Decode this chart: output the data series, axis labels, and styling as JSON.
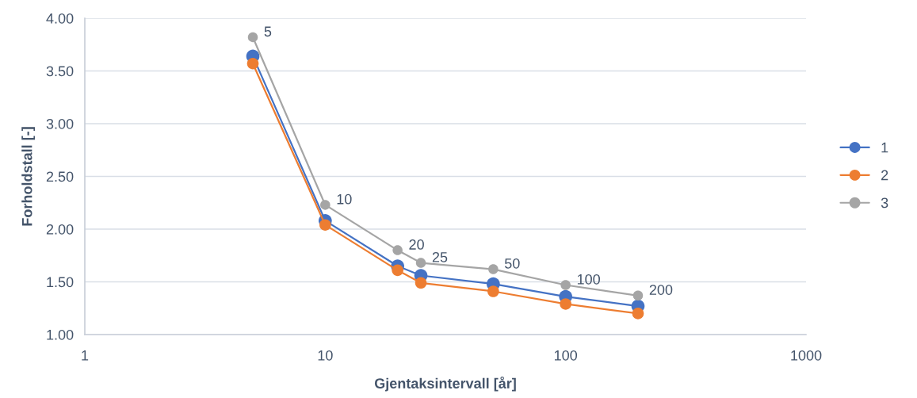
{
  "chart_data": {
    "type": "line",
    "xlabel": "Gjentaksintervall [år]",
    "ylabel": "Forholdstall [-]",
    "x": [
      5,
      10,
      20,
      25,
      50,
      100,
      200
    ],
    "series": [
      {
        "name": "1",
        "color": "#4472c4",
        "values": [
          3.64,
          2.08,
          1.65,
          1.56,
          1.48,
          1.36,
          1.27
        ]
      },
      {
        "name": "2",
        "color": "#ed7d31",
        "values": [
          3.57,
          2.04,
          1.61,
          1.49,
          1.41,
          1.29,
          1.2
        ]
      },
      {
        "name": "3",
        "color": "#a5a5a5",
        "values": [
          3.82,
          2.23,
          1.8,
          1.68,
          1.62,
          1.47,
          1.37
        ]
      }
    ],
    "annotations": [
      {
        "text": "5",
        "x": 5,
        "y": 3.82
      },
      {
        "text": "10",
        "x": 10,
        "y": 2.23
      },
      {
        "text": "20",
        "x": 20,
        "y": 1.8
      },
      {
        "text": "25",
        "x": 25,
        "y": 1.68
      },
      {
        "text": "50",
        "x": 50,
        "y": 1.62
      },
      {
        "text": "100",
        "x": 100,
        "y": 1.47
      },
      {
        "text": "200",
        "x": 200,
        "y": 1.37
      }
    ],
    "log": "x",
    "xlim": [
      1,
      1000
    ],
    "xticks": [
      1,
      10,
      100,
      1000
    ],
    "ylim": [
      1,
      4
    ],
    "yticks": [
      {
        "value": 1,
        "label": "1.00"
      },
      {
        "value": 1.5,
        "label": "1.50"
      },
      {
        "value": 2,
        "label": "2.00"
      },
      {
        "value": 2.5,
        "label": "2.50"
      },
      {
        "value": 3,
        "label": "3.00"
      },
      {
        "value": 3.5,
        "label": "3.50"
      },
      {
        "value": 4,
        "label": "4.00"
      }
    ],
    "grid": "y",
    "legend": "right",
    "marker": "circle",
    "line_style": "solid"
  }
}
